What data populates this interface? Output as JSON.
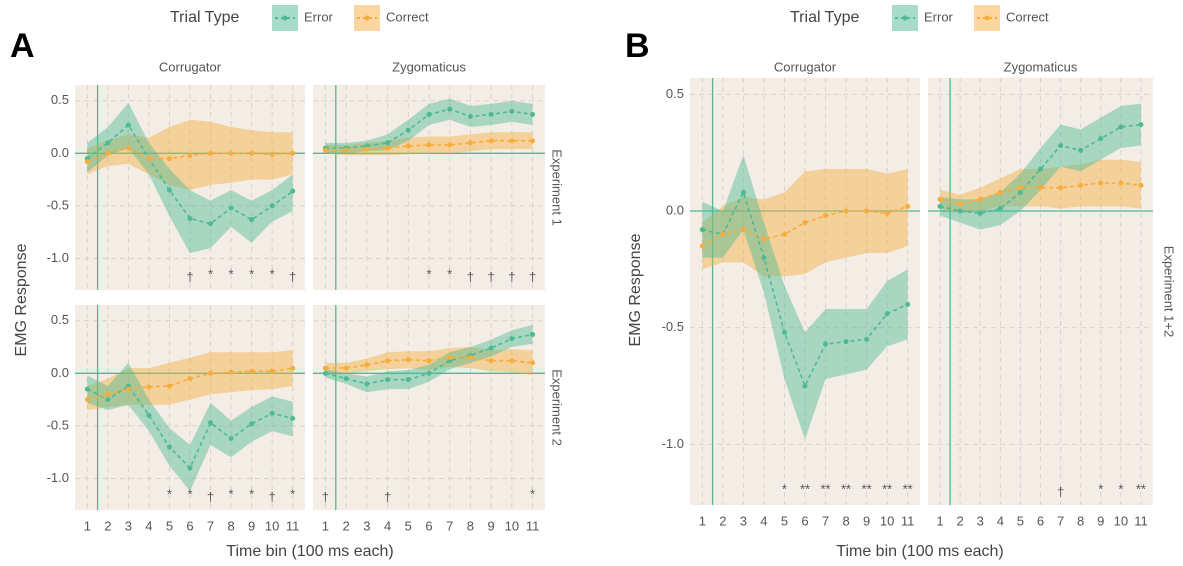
{
  "figures": [
    {
      "label": "A",
      "legend_title": "Trial Type",
      "x_label": "Time bin (100 ms each)",
      "y_label": "EMG Response"
    },
    {
      "label": "B",
      "legend_title": "Trial Type",
      "x_label": "Time bin (100 ms each)",
      "y_label": "EMG Response"
    }
  ],
  "chart_data": [
    {
      "type": "line",
      "strip": "Corrugator",
      "x": [
        1,
        2,
        3,
        4,
        5,
        6,
        7,
        8,
        9,
        10,
        11
      ],
      "xlim": [
        0.4,
        11.6
      ],
      "xticks": [
        1,
        2,
        3,
        4,
        5,
        6,
        7,
        8,
        9,
        10,
        11
      ],
      "ylim": [
        -1.3,
        0.65
      ],
      "yticks": [
        {
          "value": -1,
          "label": "-1.0"
        },
        {
          "value": -0.5,
          "label": "-0.5"
        },
        {
          "value": 0,
          "label": "0.0"
        },
        {
          "value": 0.5,
          "label": "0.5"
        }
      ],
      "vline": 1.5,
      "hline": 0,
      "series": [
        {
          "name": "Error",
          "color": "#4dba94",
          "values": [
            -0.05,
            0.1,
            0.27,
            -0.05,
            -0.35,
            -0.62,
            -0.67,
            -0.52,
            -0.63,
            -0.5,
            -0.36
          ],
          "lower": [
            -0.18,
            -0.02,
            0.05,
            -0.2,
            -0.6,
            -0.95,
            -0.9,
            -0.7,
            -0.85,
            -0.65,
            -0.55
          ],
          "upper": [
            0.1,
            0.25,
            0.48,
            0.1,
            -0.15,
            -0.35,
            -0.45,
            -0.35,
            -0.45,
            -0.35,
            -0.2
          ]
        },
        {
          "name": "Correct",
          "color": "#f7ad3d",
          "values": [
            -0.08,
            0,
            0.05,
            -0.05,
            -0.05,
            -0.02,
            0,
            0,
            0,
            -0.01,
            0
          ],
          "lower": [
            -0.2,
            -0.12,
            -0.1,
            -0.2,
            -0.3,
            -0.35,
            -0.3,
            -0.28,
            -0.25,
            -0.25,
            -0.2
          ],
          "upper": [
            0.05,
            0.12,
            0.18,
            0.15,
            0.25,
            0.32,
            0.3,
            0.25,
            0.22,
            0.2,
            0.2
          ]
        }
      ],
      "significance": {
        "x": [
          6,
          7,
          8,
          9,
          10,
          11
        ],
        "labels": [
          "†",
          "*",
          "*",
          "*",
          "*",
          "†"
        ]
      }
    },
    {
      "type": "line",
      "strip": "Zygomaticus",
      "row_strip": "Experiment 1",
      "x": [
        1,
        2,
        3,
        4,
        5,
        6,
        7,
        8,
        9,
        10,
        11
      ],
      "xlim": [
        0.4,
        11.6
      ],
      "xticks": [
        1,
        2,
        3,
        4,
        5,
        6,
        7,
        8,
        9,
        10,
        11
      ],
      "ylim": [
        -1.3,
        0.65
      ],
      "yticks": [
        {
          "value": -1,
          "label": "-1.0"
        },
        {
          "value": -0.5,
          "label": "-0.5"
        },
        {
          "value": 0,
          "label": "0.0"
        },
        {
          "value": 0.5,
          "label": "0.5"
        }
      ],
      "vline": 1.5,
      "hline": 0,
      "series": [
        {
          "name": "Error",
          "color": "#4dba94",
          "values": [
            0.05,
            0.05,
            0.07,
            0.1,
            0.22,
            0.37,
            0.42,
            0.35,
            0.37,
            0.4,
            0.37
          ],
          "lower": [
            0,
            0,
            0.02,
            0.03,
            0.12,
            0.27,
            0.32,
            0.25,
            0.27,
            0.3,
            0.27
          ],
          "upper": [
            0.1,
            0.1,
            0.12,
            0.18,
            0.32,
            0.47,
            0.52,
            0.45,
            0.47,
            0.5,
            0.47
          ]
        },
        {
          "name": "Correct",
          "color": "#f7ad3d",
          "values": [
            0.03,
            0.03,
            0.04,
            0.05,
            0.07,
            0.08,
            0.08,
            0.1,
            0.12,
            0.12,
            0.12
          ],
          "lower": [
            0,
            -0.02,
            -0.02,
            -0.02,
            -0.01,
            0,
            0,
            0.02,
            0.04,
            0.04,
            0.04
          ],
          "upper": [
            0.08,
            0.08,
            0.1,
            0.12,
            0.15,
            0.16,
            0.16,
            0.18,
            0.2,
            0.2,
            0.2
          ]
        }
      ],
      "significance": {
        "x": [
          6,
          7,
          8,
          9,
          10,
          11
        ],
        "labels": [
          "*",
          "*",
          "†",
          "†",
          "†",
          "†"
        ]
      }
    },
    {
      "type": "line",
      "x": [
        1,
        2,
        3,
        4,
        5,
        6,
        7,
        8,
        9,
        10,
        11
      ],
      "xlim": [
        0.4,
        11.6
      ],
      "xticks": [
        1,
        2,
        3,
        4,
        5,
        6,
        7,
        8,
        9,
        10,
        11
      ],
      "ylim": [
        -1.3,
        0.65
      ],
      "yticks": [
        {
          "value": -1,
          "label": "-1.0"
        },
        {
          "value": -0.5,
          "label": "-0.5"
        },
        {
          "value": 0,
          "label": "0.0"
        },
        {
          "value": 0.5,
          "label": "0.5"
        }
      ],
      "vline": 1.5,
      "hline": 0,
      "series": [
        {
          "name": "Error",
          "color": "#4dba94",
          "values": [
            -0.15,
            -0.25,
            -0.12,
            -0.4,
            -0.7,
            -0.9,
            -0.47,
            -0.62,
            -0.48,
            -0.38,
            -0.43
          ],
          "lower": [
            -0.28,
            -0.35,
            -0.3,
            -0.55,
            -0.88,
            -1.12,
            -0.68,
            -0.8,
            -0.65,
            -0.55,
            -0.6
          ],
          "upper": [
            -0.02,
            -0.12,
            0.1,
            -0.25,
            -0.52,
            -0.68,
            -0.28,
            -0.45,
            -0.32,
            -0.22,
            -0.27
          ]
        },
        {
          "name": "Correct",
          "color": "#f7ad3d",
          "values": [
            -0.25,
            -0.2,
            -0.15,
            -0.13,
            -0.12,
            -0.05,
            0,
            0.01,
            0.02,
            0.02,
            0.05
          ],
          "lower": [
            -0.35,
            -0.32,
            -0.3,
            -0.3,
            -0.3,
            -0.25,
            -0.2,
            -0.18,
            -0.16,
            -0.15,
            -0.12
          ],
          "upper": [
            -0.12,
            -0.05,
            0.05,
            0.05,
            0.1,
            0.15,
            0.2,
            0.2,
            0.2,
            0.2,
            0.22
          ]
        }
      ],
      "significance": {
        "x": [
          5,
          6,
          7,
          8,
          9,
          10,
          11
        ],
        "labels": [
          "*",
          "*",
          "†",
          "*",
          "*",
          "†",
          "*"
        ]
      }
    },
    {
      "type": "line",
      "row_strip": "Experiment 2",
      "x": [
        1,
        2,
        3,
        4,
        5,
        6,
        7,
        8,
        9,
        10,
        11
      ],
      "xlim": [
        0.4,
        11.6
      ],
      "xticks": [
        1,
        2,
        3,
        4,
        5,
        6,
        7,
        8,
        9,
        10,
        11
      ],
      "ylim": [
        -1.3,
        0.65
      ],
      "yticks": [
        {
          "value": -1,
          "label": "-1.0"
        },
        {
          "value": -0.5,
          "label": "-0.5"
        },
        {
          "value": 0,
          "label": "0.0"
        },
        {
          "value": 0.5,
          "label": "0.5"
        }
      ],
      "vline": 1.5,
      "hline": 0,
      "series": [
        {
          "name": "Error",
          "color": "#4dba94",
          "values": [
            0,
            -0.05,
            -0.1,
            -0.06,
            -0.06,
            0,
            0.12,
            0.17,
            0.24,
            0.33,
            0.37
          ],
          "lower": [
            -0.04,
            -0.1,
            -0.18,
            -0.15,
            -0.15,
            -0.08,
            0.04,
            0.1,
            0.16,
            0.25,
            0.28
          ],
          "upper": [
            0.04,
            0,
            -0.03,
            0.02,
            0.03,
            0.08,
            0.2,
            0.25,
            0.32,
            0.41,
            0.46
          ]
        },
        {
          "name": "Correct",
          "color": "#f7ad3d",
          "values": [
            0.05,
            0.05,
            0.08,
            0.12,
            0.13,
            0.12,
            0.15,
            0.15,
            0.12,
            0.12,
            0.1
          ],
          "lower": [
            0,
            0,
            0.02,
            0.04,
            0.05,
            0.03,
            0.06,
            0.05,
            0.02,
            0.01,
            -0.02
          ],
          "upper": [
            0.1,
            0.1,
            0.14,
            0.2,
            0.21,
            0.21,
            0.24,
            0.25,
            0.22,
            0.23,
            0.22
          ]
        }
      ],
      "significance": {
        "x": [
          1,
          4,
          11
        ],
        "labels": [
          "†",
          "†",
          "*"
        ]
      }
    },
    {
      "type": "line",
      "strip": "Corrugator",
      "x": [
        1,
        2,
        3,
        4,
        5,
        6,
        7,
        8,
        9,
        10,
        11
      ],
      "xlim": [
        0.4,
        11.6
      ],
      "xticks": [
        1,
        2,
        3,
        4,
        5,
        6,
        7,
        8,
        9,
        10,
        11
      ],
      "ylim": [
        -1.26,
        0.57
      ],
      "yticks": [
        {
          "value": -1,
          "label": "-1.0"
        },
        {
          "value": -0.5,
          "label": "-0.5"
        },
        {
          "value": 0,
          "label": "0.0"
        },
        {
          "value": 0.5,
          "label": "0.5"
        }
      ],
      "vline": 1.5,
      "hline": 0,
      "series": [
        {
          "name": "Error",
          "color": "#4dba94",
          "values": [
            -0.08,
            -0.1,
            0.08,
            -0.2,
            -0.52,
            -0.75,
            -0.57,
            -0.56,
            -0.55,
            -0.44,
            -0.4
          ],
          "lower": [
            -0.2,
            -0.2,
            -0.08,
            -0.35,
            -0.72,
            -0.98,
            -0.72,
            -0.7,
            -0.68,
            -0.58,
            -0.55
          ],
          "upper": [
            0.04,
            0,
            0.24,
            -0.05,
            -0.32,
            -0.52,
            -0.42,
            -0.42,
            -0.42,
            -0.3,
            -0.25
          ]
        },
        {
          "name": "Correct",
          "color": "#f7ad3d",
          "values": [
            -0.15,
            -0.1,
            -0.08,
            -0.12,
            -0.1,
            -0.05,
            -0.02,
            0,
            0,
            -0.01,
            0.02
          ],
          "lower": [
            -0.25,
            -0.22,
            -0.22,
            -0.28,
            -0.28,
            -0.27,
            -0.22,
            -0.2,
            -0.18,
            -0.18,
            -0.15
          ],
          "upper": [
            -0.05,
            0.02,
            0.06,
            0.05,
            0.08,
            0.17,
            0.18,
            0.18,
            0.18,
            0.16,
            0.18
          ]
        }
      ],
      "significance": {
        "x": [
          5,
          6,
          7,
          8,
          9,
          10,
          11
        ],
        "labels": [
          "*",
          "**",
          "**",
          "**",
          "**",
          "**",
          "**"
        ]
      }
    },
    {
      "type": "line",
      "strip": "Zygomaticus",
      "row_strip": "Experiment 1+2",
      "x": [
        1,
        2,
        3,
        4,
        5,
        6,
        7,
        8,
        9,
        10,
        11
      ],
      "xlim": [
        0.4,
        11.6
      ],
      "xticks": [
        1,
        2,
        3,
        4,
        5,
        6,
        7,
        8,
        9,
        10,
        11
      ],
      "ylim": [
        -1.26,
        0.57
      ],
      "yticks": [
        {
          "value": -1,
          "label": "-1.0"
        },
        {
          "value": -0.5,
          "label": "-0.5"
        },
        {
          "value": 0,
          "label": "0.0"
        },
        {
          "value": 0.5,
          "label": "0.5"
        }
      ],
      "vline": 1.5,
      "hline": 0,
      "series": [
        {
          "name": "Error",
          "color": "#4dba94",
          "values": [
            0.02,
            0,
            -0.01,
            0.01,
            0.08,
            0.18,
            0.28,
            0.26,
            0.31,
            0.36,
            0.37
          ],
          "lower": [
            -0.02,
            -0.05,
            -0.08,
            -0.06,
            0,
            0.09,
            0.19,
            0.17,
            0.22,
            0.27,
            0.28
          ],
          "upper": [
            0.06,
            0.05,
            0.05,
            0.08,
            0.16,
            0.27,
            0.37,
            0.35,
            0.4,
            0.45,
            0.46
          ]
        },
        {
          "name": "Correct",
          "color": "#f7ad3d",
          "values": [
            0.05,
            0.03,
            0.05,
            0.08,
            0.1,
            0.1,
            0.1,
            0.11,
            0.12,
            0.12,
            0.11
          ],
          "lower": [
            0.01,
            -0.01,
            0,
            0.02,
            0.02,
            0.02,
            0.01,
            0.02,
            0.02,
            0.02,
            0.01
          ],
          "upper": [
            0.09,
            0.07,
            0.1,
            0.14,
            0.18,
            0.18,
            0.19,
            0.2,
            0.22,
            0.22,
            0.21
          ]
        }
      ],
      "significance": {
        "x": [
          7,
          9,
          10,
          11
        ],
        "labels": [
          "†",
          "*",
          "*",
          "**"
        ]
      }
    }
  ]
}
